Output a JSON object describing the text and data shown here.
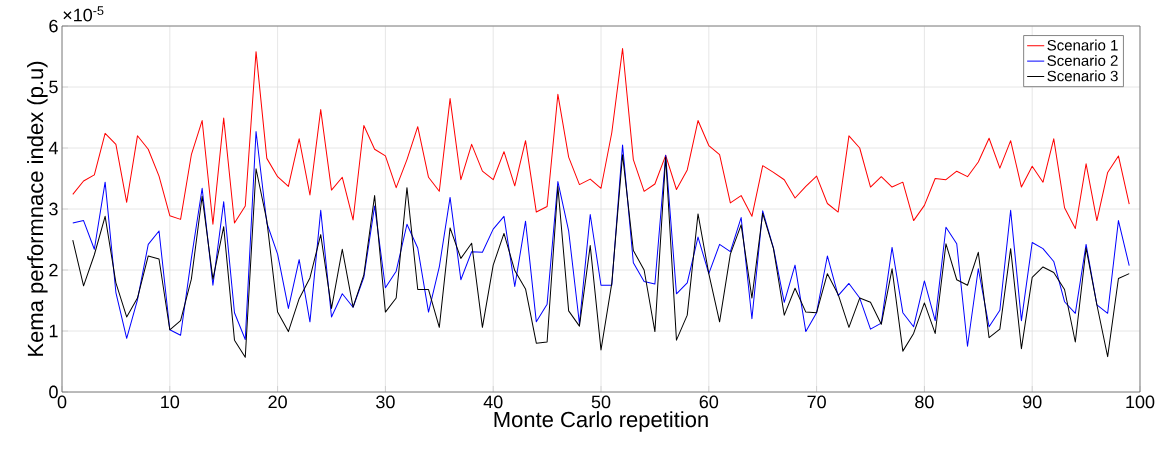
{
  "chart_data": {
    "type": "line",
    "xlabel": "Monte Carlo repetition",
    "ylabel": "Kema performnace index (p.u)",
    "annotations": [
      "×10$^{-5}$"
    ],
    "x": [
      1,
      2,
      3,
      4,
      5,
      6,
      7,
      8,
      9,
      10,
      11,
      12,
      13,
      14,
      15,
      16,
      17,
      18,
      19,
      20,
      21,
      22,
      23,
      24,
      25,
      26,
      27,
      28,
      29,
      30,
      31,
      32,
      33,
      34,
      35,
      36,
      37,
      38,
      39,
      40,
      41,
      42,
      43,
      44,
      45,
      46,
      47,
      48,
      49,
      50,
      51,
      52,
      53,
      54,
      55,
      56,
      57,
      58,
      59,
      60,
      61,
      62,
      63,
      64,
      65,
      66,
      67,
      68,
      69,
      70,
      71,
      72,
      73,
      74,
      75,
      76,
      77,
      78,
      79,
      80,
      81,
      82,
      83,
      84,
      85,
      86,
      87,
      88,
      89,
      90,
      91,
      92,
      93,
      94,
      95,
      96,
      97,
      98,
      99
    ],
    "xlim": [
      0,
      100
    ],
    "xticks": [
      0,
      10,
      20,
      30,
      40,
      50,
      60,
      70,
      80,
      90,
      100
    ],
    "ylim": [
      0,
      6
    ],
    "yticks": [
      0,
      1,
      2,
      3,
      4,
      5,
      6
    ],
    "grid": true,
    "legend": "top right",
    "series": [
      {
        "name": "Scenario 1",
        "color": "#ff0000",
        "values": [
          3.24,
          3.46,
          3.56,
          4.24,
          4.06,
          3.11,
          4.2,
          3.98,
          3.54,
          2.89,
          2.83,
          3.89,
          4.45,
          2.75,
          4.49,
          2.77,
          3.05,
          5.58,
          3.83,
          3.53,
          3.37,
          4.15,
          3.23,
          4.63,
          3.31,
          3.52,
          2.82,
          4.37,
          3.98,
          3.87,
          3.35,
          3.81,
          4.35,
          3.52,
          3.29,
          4.81,
          3.48,
          4.06,
          3.62,
          3.48,
          3.94,
          3.38,
          4.12,
          2.95,
          3.04,
          4.88,
          3.85,
          3.4,
          3.49,
          3.34,
          4.25,
          5.63,
          3.81,
          3.29,
          3.41,
          3.88,
          3.32,
          3.64,
          4.45,
          4.04,
          3.89,
          3.1,
          3.22,
          2.88,
          3.71,
          3.6,
          3.48,
          3.18,
          3.37,
          3.54,
          3.09,
          2.95,
          4.2,
          4.0,
          3.36,
          3.53,
          3.36,
          3.44,
          2.81,
          3.06,
          3.5,
          3.48,
          3.62,
          3.53,
          3.77,
          4.16,
          3.67,
          4.12,
          3.36,
          3.7,
          3.44,
          4.15,
          3.02,
          2.68,
          3.74,
          2.81,
          3.6,
          3.87,
          3.08
        ]
      },
      {
        "name": "Scenario 2",
        "color": "#0000ff",
        "values": [
          2.77,
          2.81,
          2.34,
          3.44,
          1.63,
          0.88,
          1.51,
          2.42,
          2.64,
          1.02,
          0.93,
          2.19,
          3.34,
          1.75,
          3.12,
          1.3,
          0.86,
          4.27,
          2.77,
          2.26,
          1.37,
          2.17,
          1.15,
          2.98,
          1.23,
          1.61,
          1.39,
          1.88,
          3.05,
          1.71,
          1.98,
          2.75,
          2.36,
          1.31,
          2.05,
          3.19,
          1.84,
          2.3,
          2.29,
          2.67,
          2.88,
          1.73,
          2.8,
          1.15,
          1.44,
          3.45,
          2.64,
          1.12,
          2.91,
          1.75,
          1.75,
          4.05,
          2.12,
          1.81,
          1.77,
          3.88,
          1.61,
          1.79,
          2.54,
          1.94,
          2.42,
          2.3,
          2.86,
          1.2,
          2.97,
          2.36,
          1.47,
          2.08,
          0.99,
          1.3,
          2.23,
          1.58,
          1.78,
          1.54,
          1.03,
          1.13,
          2.37,
          1.3,
          1.07,
          1.82,
          1.17,
          2.7,
          2.43,
          0.75,
          2.02,
          1.07,
          1.34,
          2.98,
          1.17,
          2.45,
          2.35,
          2.14,
          1.48,
          1.29,
          2.42,
          1.43,
          1.29,
          2.81,
          2.07
        ]
      },
      {
        "name": "Scenario 3",
        "color": "#000000",
        "values": [
          2.49,
          1.74,
          2.25,
          2.88,
          1.79,
          1.23,
          1.54,
          2.23,
          2.18,
          1.02,
          1.17,
          1.85,
          3.21,
          1.85,
          2.71,
          0.85,
          0.57,
          3.66,
          2.81,
          1.31,
          0.99,
          1.53,
          1.87,
          2.58,
          1.37,
          2.34,
          1.39,
          1.92,
          3.22,
          1.31,
          1.54,
          3.35,
          1.68,
          1.68,
          1.06,
          2.69,
          2.19,
          2.44,
          1.06,
          2.08,
          2.6,
          1.99,
          1.69,
          0.8,
          0.82,
          3.37,
          1.33,
          1.08,
          2.4,
          0.69,
          1.78,
          3.89,
          2.32,
          2.0,
          0.99,
          3.85,
          0.85,
          1.26,
          2.92,
          1.94,
          1.15,
          2.26,
          2.74,
          1.54,
          2.93,
          2.35,
          1.26,
          1.7,
          1.31,
          1.3,
          1.94,
          1.6,
          1.06,
          1.54,
          1.47,
          1.11,
          2.02,
          0.67,
          0.96,
          1.46,
          0.96,
          2.43,
          1.84,
          1.75,
          2.29,
          0.89,
          1.03,
          2.35,
          0.71,
          1.88,
          2.05,
          1.96,
          1.68,
          0.82,
          2.36,
          1.43,
          0.58,
          1.86,
          1.94
        ]
      }
    ]
  }
}
